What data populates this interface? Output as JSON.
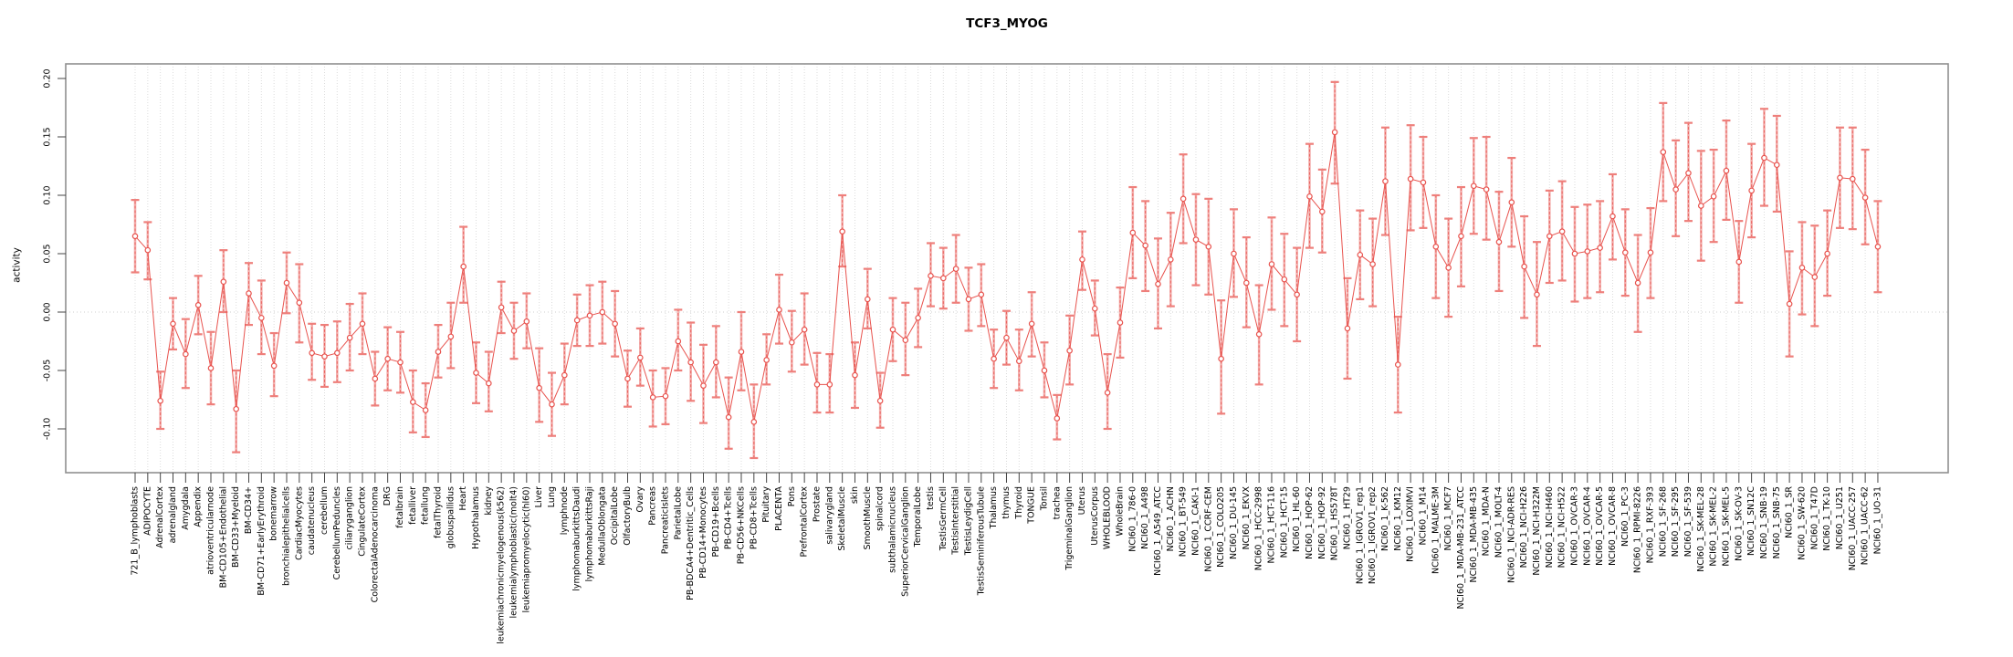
{
  "chart_data": {
    "type": "line",
    "subtype": "points-with-error-bars",
    "title": "TCF3_MYOG",
    "xlabel": "",
    "ylabel": "activity",
    "ylim": [
      -0.1375,
      0.2125
    ],
    "y_ticks": [
      0.2,
      0.15,
      0.1,
      0.05,
      0.0,
      -0.05,
      -0.1
    ],
    "y_tick_labels": [
      "0.20",
      "0.15",
      "0.10",
      "0.05",
      "0.00",
      "-0.05",
      "-0.10"
    ],
    "grid": "vertical dotted gridline per category; dotted horizontal line at 0.00",
    "legend_position": "none",
    "x_tick_label_rotation": 90,
    "points_format": [
      "label",
      "value",
      "ci_low",
      "ci_high"
    ],
    "points": [
      [
        "721_B_lymphoblasts",
        0.065,
        0.034,
        0.096
      ],
      [
        "ADIPOCYTE",
        0.053,
        0.028,
        0.077
      ],
      [
        "AdrenalCortex",
        -0.076,
        -0.1,
        -0.051
      ],
      [
        "adrenalgland",
        -0.01,
        -0.032,
        0.012
      ],
      [
        "Amygdala",
        -0.036,
        -0.065,
        -0.006
      ],
      [
        "Appendix",
        0.006,
        -0.019,
        0.031
      ],
      [
        "atrioventricularnode",
        -0.048,
        -0.079,
        -0.017
      ],
      [
        "BM-CD105+Endothelial",
        0.026,
        0.0,
        0.053
      ],
      [
        "BM-CD33+Myeloid",
        -0.083,
        -0.12,
        -0.05
      ],
      [
        "BM-CD34+",
        0.016,
        -0.011,
        0.042
      ],
      [
        "BM-CD71+EarlyErythroid",
        -0.005,
        -0.036,
        0.027
      ],
      [
        "bonemarrow",
        -0.046,
        -0.072,
        -0.018
      ],
      [
        "bronchialepithelialcells",
        0.025,
        -0.001,
        0.051
      ],
      [
        "CardiacMyocytes",
        0.008,
        -0.026,
        0.041
      ],
      [
        "caudatenucleus",
        -0.035,
        -0.058,
        -0.01
      ],
      [
        "cerebellum",
        -0.038,
        -0.064,
        -0.011
      ],
      [
        "CerebellumPeduncles",
        -0.035,
        -0.06,
        -0.008
      ],
      [
        "ciliaryganglion",
        -0.022,
        -0.05,
        0.007
      ],
      [
        "CingulateCortex",
        -0.01,
        -0.036,
        0.016
      ],
      [
        "ColorectalAdenocarcinoma",
        -0.057,
        -0.08,
        -0.034
      ],
      [
        "DRG",
        -0.04,
        -0.067,
        -0.013
      ],
      [
        "fetalbrain",
        -0.043,
        -0.069,
        -0.017
      ],
      [
        "fetalliver",
        -0.077,
        -0.103,
        -0.05
      ],
      [
        "fetallung",
        -0.084,
        -0.107,
        -0.061
      ],
      [
        "fetalThyroid",
        -0.034,
        -0.056,
        -0.011
      ],
      [
        "globuspallidus",
        -0.021,
        -0.048,
        0.008
      ],
      [
        "Heart",
        0.039,
        0.008,
        0.073
      ],
      [
        "Hypothalamus",
        -0.052,
        -0.078,
        -0.026
      ],
      [
        "kidney",
        -0.061,
        -0.085,
        -0.034
      ],
      [
        "leukemiachronicmyelogenous(k562)",
        0.004,
        -0.018,
        0.026
      ],
      [
        "leukemialymphoblastic(molt4)",
        -0.016,
        -0.04,
        0.008
      ],
      [
        "leukemiapromyelocytic(hl60)",
        -0.008,
        -0.031,
        0.016
      ],
      [
        "Liver",
        -0.065,
        -0.094,
        -0.031
      ],
      [
        "Lung",
        -0.079,
        -0.106,
        -0.052
      ],
      [
        "lymphnode",
        -0.054,
        -0.079,
        -0.027
      ],
      [
        "lymphomaburkittsDaudi",
        -0.007,
        -0.029,
        0.015
      ],
      [
        "lymphomaburkittsRaji",
        -0.003,
        -0.029,
        0.023
      ],
      [
        "MedullaOblongata",
        0.0,
        -0.027,
        0.026
      ],
      [
        "OccipitalLobe",
        -0.01,
        -0.038,
        0.018
      ],
      [
        "OlfactoryBulb",
        -0.057,
        -0.081,
        -0.033
      ],
      [
        "Ovary",
        -0.039,
        -0.063,
        -0.014
      ],
      [
        "Pancreas",
        -0.073,
        -0.098,
        -0.05
      ],
      [
        "PancreaticIslets",
        -0.072,
        -0.096,
        -0.048
      ],
      [
        "ParietalLobe",
        -0.025,
        -0.05,
        0.002
      ],
      [
        "PB-BDCA4+Dentritic_Cells",
        -0.043,
        -0.076,
        -0.009
      ],
      [
        "PB-CD14+Monocytes",
        -0.063,
        -0.095,
        -0.028
      ],
      [
        "PB-CD19+Bcells",
        -0.043,
        -0.073,
        -0.012
      ],
      [
        "PB-CD4+Tcells",
        -0.09,
        -0.117,
        -0.056
      ],
      [
        "PB-CD56+NKCells",
        -0.034,
        -0.067,
        0.0
      ],
      [
        "PB-CD8+Tcells",
        -0.094,
        -0.125,
        -0.062
      ],
      [
        "Pituitary",
        -0.041,
        -0.062,
        -0.019
      ],
      [
        "PLACENTA",
        0.002,
        -0.027,
        0.032
      ],
      [
        "Pons",
        -0.026,
        -0.051,
        0.001
      ],
      [
        "PrefrontalCortex",
        -0.015,
        -0.045,
        0.016
      ],
      [
        "Prostate",
        -0.062,
        -0.086,
        -0.035
      ],
      [
        "salivarygland",
        -0.062,
        -0.086,
        -0.036
      ],
      [
        "SkeletalMuscle",
        0.069,
        0.039,
        0.1
      ],
      [
        "skin",
        -0.054,
        -0.082,
        -0.026
      ],
      [
        "SmoothMuscle",
        0.011,
        -0.014,
        0.037
      ],
      [
        "spinalcord",
        -0.076,
        -0.099,
        -0.052
      ],
      [
        "subthalamicnucleus",
        -0.015,
        -0.042,
        0.012
      ],
      [
        "SuperiorCervicalGanglion",
        -0.024,
        -0.054,
        0.008
      ],
      [
        "TemporalLobe",
        -0.005,
        -0.03,
        0.02
      ],
      [
        "testis",
        0.031,
        0.005,
        0.059
      ],
      [
        "TestisGermCell",
        0.029,
        0.003,
        0.055
      ],
      [
        "TestisInterstitial",
        0.037,
        0.008,
        0.066
      ],
      [
        "TestisLeydigCell",
        0.011,
        -0.016,
        0.038
      ],
      [
        "TestisSeminiferousTubule",
        0.015,
        -0.012,
        0.041
      ],
      [
        "Thalamus",
        -0.04,
        -0.065,
        -0.015
      ],
      [
        "thymus",
        -0.022,
        -0.045,
        0.001
      ],
      [
        "Thyroid",
        -0.042,
        -0.067,
        -0.015
      ],
      [
        "TONGUE",
        -0.01,
        -0.038,
        0.017
      ],
      [
        "Tonsil",
        -0.05,
        -0.073,
        -0.026
      ],
      [
        "trachea",
        -0.091,
        -0.109,
        -0.071
      ],
      [
        "TrigeminalGanglion",
        -0.033,
        -0.062,
        -0.003
      ],
      [
        "Uterus",
        0.045,
        0.019,
        0.069
      ],
      [
        "UterusCorpus",
        0.003,
        -0.02,
        0.027
      ],
      [
        "WHOLEBLOOD",
        -0.069,
        -0.1,
        -0.036
      ],
      [
        "WholeBrain",
        -0.009,
        -0.039,
        0.021
      ],
      [
        "NCI60_1_786-0",
        0.068,
        0.029,
        0.107
      ],
      [
        "NCI60_1_A498",
        0.057,
        0.018,
        0.095
      ],
      [
        "NCI60_1_A549_ATCC",
        0.024,
        -0.014,
        0.063
      ],
      [
        "NCI60_1_ACHN",
        0.045,
        0.005,
        0.085
      ],
      [
        "NCI60_1_BT-549",
        0.097,
        0.059,
        0.135
      ],
      [
        "NCI60_1_CAKI-1",
        0.062,
        0.023,
        0.101
      ],
      [
        "NCI60_1_CCRF-CEM",
        0.056,
        0.015,
        0.097
      ],
      [
        "NCI60_1_COLO205",
        -0.04,
        -0.087,
        0.01
      ],
      [
        "NCI60_1_DU-145",
        0.05,
        0.013,
        0.088
      ],
      [
        "NCI60_1_EKVX",
        0.025,
        -0.013,
        0.064
      ],
      [
        "NCI60_1_HCC-2998",
        -0.019,
        -0.062,
        0.023
      ],
      [
        "NCI60_1_HCT-116",
        0.041,
        0.002,
        0.081
      ],
      [
        "NCI60_1_HCT-15",
        0.028,
        -0.012,
        0.067
      ],
      [
        "NCI60_1_HL-60",
        0.015,
        -0.025,
        0.055
      ],
      [
        "NCI60_1_HOP-62",
        0.099,
        0.055,
        0.144
      ],
      [
        "NCI60_1_HOP-92",
        0.086,
        0.051,
        0.122
      ],
      [
        "NCI60_1_HS578T",
        0.154,
        0.11,
        0.197
      ],
      [
        "NCI60_1_HT29",
        -0.014,
        -0.057,
        0.029
      ],
      [
        "NCI60_1_IGROV1_rep1",
        0.049,
        0.011,
        0.087
      ],
      [
        "NCI60_1_IGROV1_rep2",
        0.041,
        0.005,
        0.08
      ],
      [
        "NCI60_1_K-562",
        0.112,
        0.066,
        0.158
      ],
      [
        "NCI60_1_KM12",
        -0.045,
        -0.086,
        -0.004
      ],
      [
        "NCI60_1_LOXIMVI",
        0.114,
        0.07,
        0.16
      ],
      [
        "NCI60_1_M14",
        0.111,
        0.072,
        0.15
      ],
      [
        "NCI60_1_MALME-3M",
        0.056,
        0.012,
        0.1
      ],
      [
        "NCI60_1_MCF7",
        0.038,
        -0.004,
        0.08
      ],
      [
        "NCI60_1_MDA-MB-231_ATCC",
        0.065,
        0.022,
        0.107
      ],
      [
        "NCI60_1_MDA-MB-435",
        0.108,
        0.067,
        0.149
      ],
      [
        "NCI60_1_MDA-N",
        0.105,
        0.062,
        0.15
      ],
      [
        "NCI60_1_MOLT-4",
        0.06,
        0.018,
        0.103
      ],
      [
        "NCI60_1_NCI-ADR-RES",
        0.094,
        0.056,
        0.132
      ],
      [
        "NCI60_1_NCI-H226",
        0.039,
        -0.005,
        0.082
      ],
      [
        "NCI60_1_NCI-H322M",
        0.015,
        -0.029,
        0.06
      ],
      [
        "NCI60_1_NCI-H460",
        0.065,
        0.025,
        0.104
      ],
      [
        "NCI60_1_NCI-H522",
        0.069,
        0.027,
        0.112
      ],
      [
        "NCI60_1_OVCAR-3",
        0.05,
        0.009,
        0.09
      ],
      [
        "NCI60_1_OVCAR-4",
        0.052,
        0.012,
        0.092
      ],
      [
        "NCI60_1_OVCAR-5",
        0.055,
        0.017,
        0.095
      ],
      [
        "NCI60_1_OVCAR-8",
        0.082,
        0.045,
        0.118
      ],
      [
        "NCI60_1_PC-3",
        0.051,
        0.014,
        0.088
      ],
      [
        "NCI60_1_RPMI-8226",
        0.025,
        -0.017,
        0.066
      ],
      [
        "NCI60_1_RXF-393",
        0.051,
        0.012,
        0.089
      ],
      [
        "NCI60_1_SF-268",
        0.137,
        0.095,
        0.179
      ],
      [
        "NCI60_1_SF-295",
        0.105,
        0.065,
        0.147
      ],
      [
        "NCI60_1_SF-539",
        0.119,
        0.078,
        0.162
      ],
      [
        "NCI60_1_SK-MEL-28",
        0.091,
        0.044,
        0.138
      ],
      [
        "NCI60_1_SK-MEL-2",
        0.099,
        0.06,
        0.139
      ],
      [
        "NCI60_1_SK-MEL-5",
        0.121,
        0.079,
        0.164
      ],
      [
        "NCI60_1_SK-OV-3",
        0.043,
        0.008,
        0.078
      ],
      [
        "NCI60_1_SN12C",
        0.104,
        0.064,
        0.144
      ],
      [
        "NCI60_1_SNB-19",
        0.132,
        0.091,
        0.174
      ],
      [
        "NCI60_1_SNB-75",
        0.126,
        0.086,
        0.168
      ],
      [
        "NCI60_1_SR",
        0.007,
        -0.038,
        0.052
      ],
      [
        "NCI60_1_SW-620",
        0.038,
        -0.002,
        0.077
      ],
      [
        "NCI60_1_T47D",
        0.03,
        -0.012,
        0.074
      ],
      [
        "NCI60_1_TK-10",
        0.05,
        0.014,
        0.087
      ],
      [
        "NCI60_1_U251",
        0.115,
        0.072,
        0.158
      ],
      [
        "NCI60_1_UACC-257",
        0.114,
        0.071,
        0.158
      ],
      [
        "NCI60_1_UACC-62",
        0.098,
        0.058,
        0.139
      ],
      [
        "NCI60_1_UO-31",
        0.056,
        0.017,
        0.095
      ]
    ],
    "colors": {
      "point_and_line": "#e8534e",
      "errorbar_band": "#f2a3a1",
      "errorbar_cap": "#ee7f7b",
      "gridline": "#dcdcdc",
      "zero_line": "#cfcfcf",
      "box_border": "#8f8f8f",
      "tick": "#444444",
      "text": "#000000",
      "background": "#ffffff"
    }
  }
}
